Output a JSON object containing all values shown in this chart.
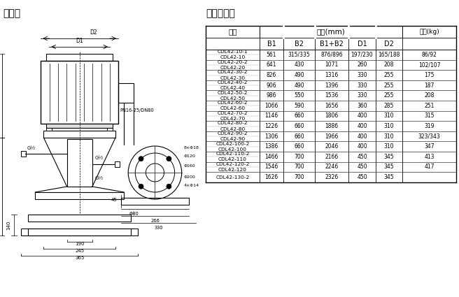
{
  "title_left": "安装图",
  "title_right": "尺寸和重量",
  "table_rows": [
    [
      "CDL42-10-1",
      "CDL42-10",
      "561",
      "315/335",
      "876/896",
      "197/230",
      "165/188",
      "86/92"
    ],
    [
      "CDL42-20-2",
      "CDL42-20",
      "641",
      "430",
      "1071",
      "260",
      "208",
      "102/107"
    ],
    [
      "CDL42-30-2",
      "CDL42-30",
      "826",
      "490",
      "1316",
      "330",
      "255",
      "175"
    ],
    [
      "CDL42-40-2",
      "CDL42-40",
      "906",
      "490",
      "1396",
      "330",
      "255",
      "187"
    ],
    [
      "CDL42-50-2",
      "CDL42-50",
      "986",
      "550",
      "1536",
      "330",
      "255",
      "208"
    ],
    [
      "CDL42-60-2",
      "CDL42-60",
      "1066",
      "590",
      "1656",
      "360",
      "285",
      "251"
    ],
    [
      "CDL42-70-2",
      "CDL42-70",
      "1146",
      "660",
      "1806",
      "400",
      "310",
      "315"
    ],
    [
      "CDL42-80-2",
      "CDL42-80",
      "1226",
      "660",
      "1886",
      "400",
      "310",
      "319"
    ],
    [
      "CDL42-90-2",
      "CDL42-90",
      "1306",
      "660",
      "1966",
      "400",
      "310",
      "323/343"
    ],
    [
      "CDL42-100-2",
      "CDL42-100",
      "1386",
      "660",
      "2046",
      "400",
      "310",
      "347"
    ],
    [
      "CDL42-110-2",
      "CDL42-110",
      "1466",
      "700",
      "2166",
      "450",
      "345",
      "413"
    ],
    [
      "CDL42-120-2",
      "CDL42-120",
      "1546",
      "700",
      "2246",
      "450",
      "345",
      "417"
    ],
    [
      "CDL42-130-2",
      "",
      "1626",
      "700",
      "2326",
      "450",
      "345",
      ""
    ]
  ],
  "bg_color": "#ffffff"
}
